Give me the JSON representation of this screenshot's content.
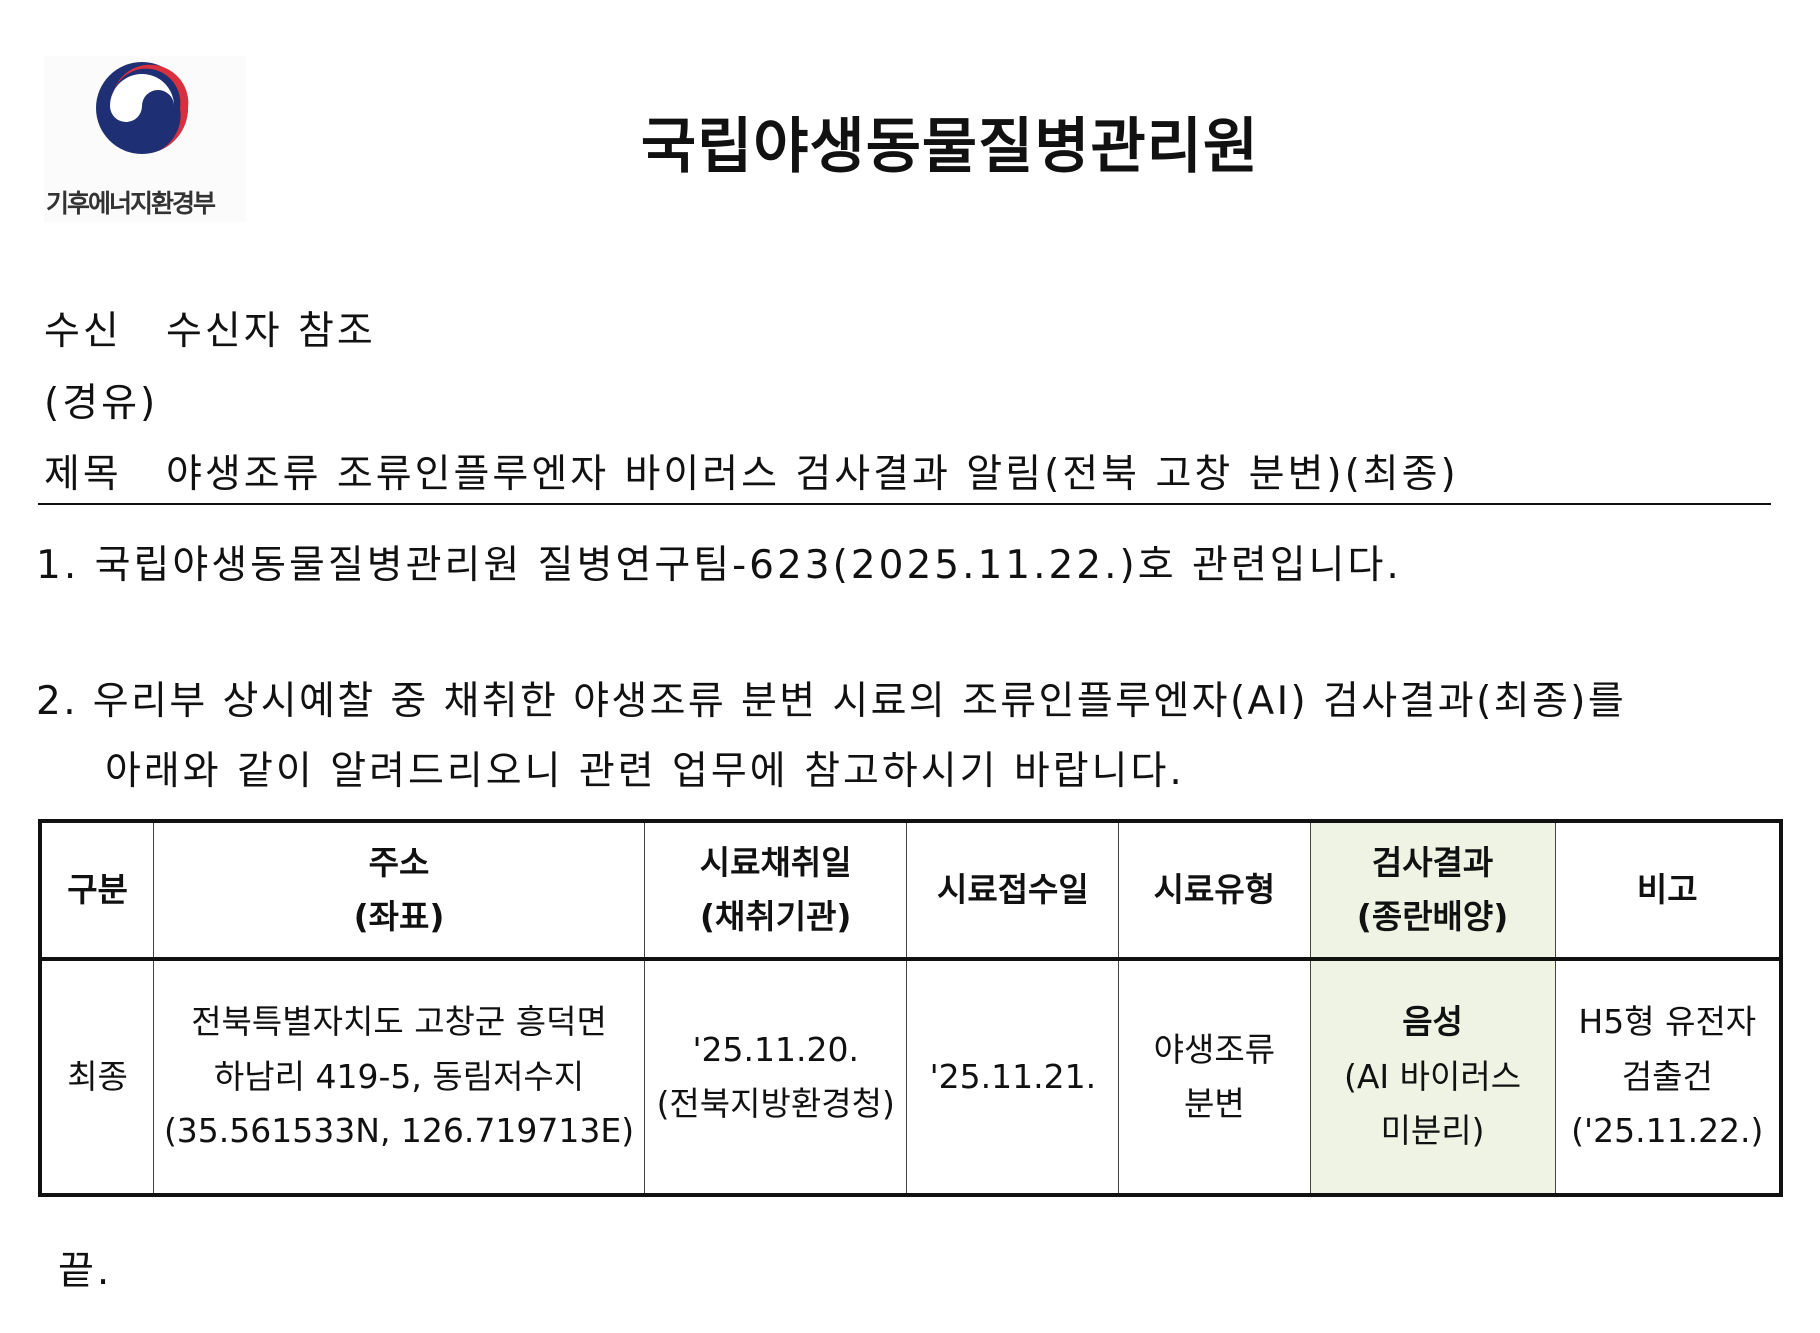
{
  "logo": {
    "org_name": "기후에너지환경부",
    "colors": {
      "blue": "#1f2f73",
      "red": "#d9303f"
    }
  },
  "header": {
    "title": "국립야생동물질병관리원"
  },
  "meta": {
    "recipient_label": "수신",
    "recipient_value": "수신자 참조",
    "via_label": "(경유)",
    "subject_label": "제목",
    "subject_value": "야생조류 조류인플루엔자 바이러스 검사결과 알림(전북 고창 분변)(최종)"
  },
  "body": {
    "p1": "1. 국립야생동물질병관리원 질병연구팀-623(2025.11.22.)호 관련입니다.",
    "p2_line1": "2. 우리부 상시예찰 중 채취한 야생조류 분변 시료의 조류인플루엔자(AI) 검사결과(최종)를",
    "p2_line2": "아래와 같이 알려드리오니 관련 업무에 참고하시기 바랍니다."
  },
  "table": {
    "headers": [
      {
        "l1": "구분",
        "l2": ""
      },
      {
        "l1": "주소",
        "l2": "(좌표)"
      },
      {
        "l1": "시료채취일",
        "l2": "(채취기관)"
      },
      {
        "l1": "시료접수일",
        "l2": ""
      },
      {
        "l1": "시료유형",
        "l2": ""
      },
      {
        "l1": "검사결과",
        "l2": "(종란배양)"
      },
      {
        "l1": "비고",
        "l2": ""
      }
    ],
    "row": {
      "category": "최종",
      "address": [
        "전북특별자치도 고창군 흥덕면",
        "하남리 419-5, 동림저수지",
        "(35.561533N, 126.719713E)"
      ],
      "collected": [
        "'25.11.20.",
        "(전북지방환경청)"
      ],
      "received": "'25.11.21.",
      "sample_type": [
        "야생조류",
        "분변"
      ],
      "result": [
        "음성",
        "(AI 바이러스",
        "미분리)"
      ],
      "note": [
        "H5형 유전자",
        "검출건",
        "('25.11.22.)"
      ]
    }
  },
  "footer": {
    "end": "끝."
  }
}
